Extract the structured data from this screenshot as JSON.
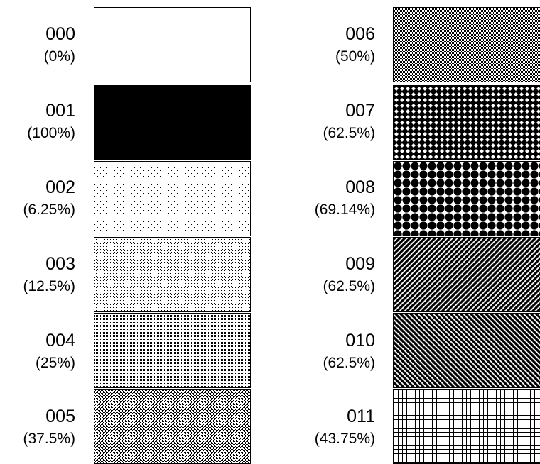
{
  "patterns": [
    {
      "code": "000",
      "percent": "(0%)",
      "pattern_icon": "solid-white-pattern-icon"
    },
    {
      "code": "001",
      "percent": "(100%)",
      "pattern_icon": "solid-black-pattern-icon"
    },
    {
      "code": "002",
      "percent": "(6.25%)",
      "pattern_icon": "sparse-dots-pattern-icon"
    },
    {
      "code": "003",
      "percent": "(12.5%)",
      "pattern_icon": "light-dots-pattern-icon"
    },
    {
      "code": "004",
      "percent": "(25%)",
      "pattern_icon": "medium-dots-pattern-icon"
    },
    {
      "code": "005",
      "percent": "(37.5%)",
      "pattern_icon": "fine-crosshatch-pattern-icon"
    },
    {
      "code": "006",
      "percent": "(50%)",
      "pattern_icon": "checkerboard-pattern-icon"
    },
    {
      "code": "007",
      "percent": "(62.5%)",
      "pattern_icon": "diamond-grid-pattern-icon"
    },
    {
      "code": "008",
      "percent": "(69.14%)",
      "pattern_icon": "large-circles-pattern-icon"
    },
    {
      "code": "009",
      "percent": "(62.5%)",
      "pattern_icon": "forward-diagonal-lines-pattern-icon"
    },
    {
      "code": "010",
      "percent": "(62.5%)",
      "pattern_icon": "backward-diagonal-lines-pattern-icon"
    },
    {
      "code": "011",
      "percent": "(43.75%)",
      "pattern_icon": "square-grid-pattern-icon"
    }
  ],
  "colors": {
    "ink": "#000000",
    "paper": "#ffffff"
  }
}
